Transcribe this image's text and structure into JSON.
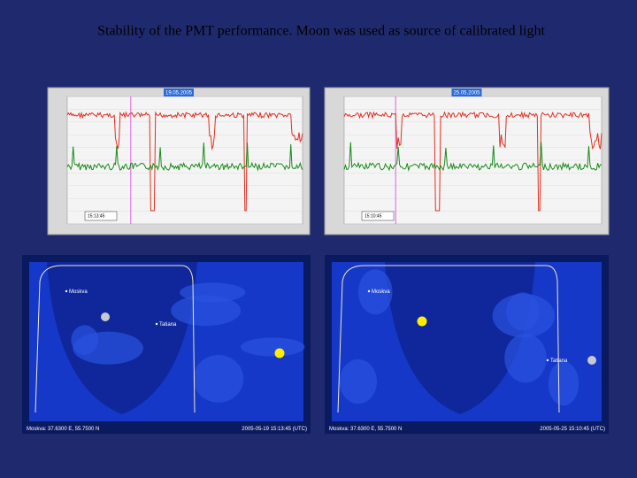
{
  "title": "Stability of the PMT performance. Moon was used as source of calibrated light",
  "charts": [
    {
      "date": "19.05.2005",
      "time": "15:13:45"
    },
    {
      "date": "25.05.2005",
      "time": "15:10:45"
    }
  ],
  "maps": [
    {
      "labels": [
        "Moskva",
        "Tatiana"
      ],
      "coords": "Moskva: 37.6300 E, 55.7500 N",
      "timestamp": "2005-05-19 15:13:45 (UTC)"
    },
    {
      "labels": [
        "Moskva",
        "Tatiana"
      ],
      "coords": "Moskva: 37.6300 E, 55.7500 N",
      "timestamp": "2005-05-25 15:10:45 (UTC)"
    }
  ]
}
